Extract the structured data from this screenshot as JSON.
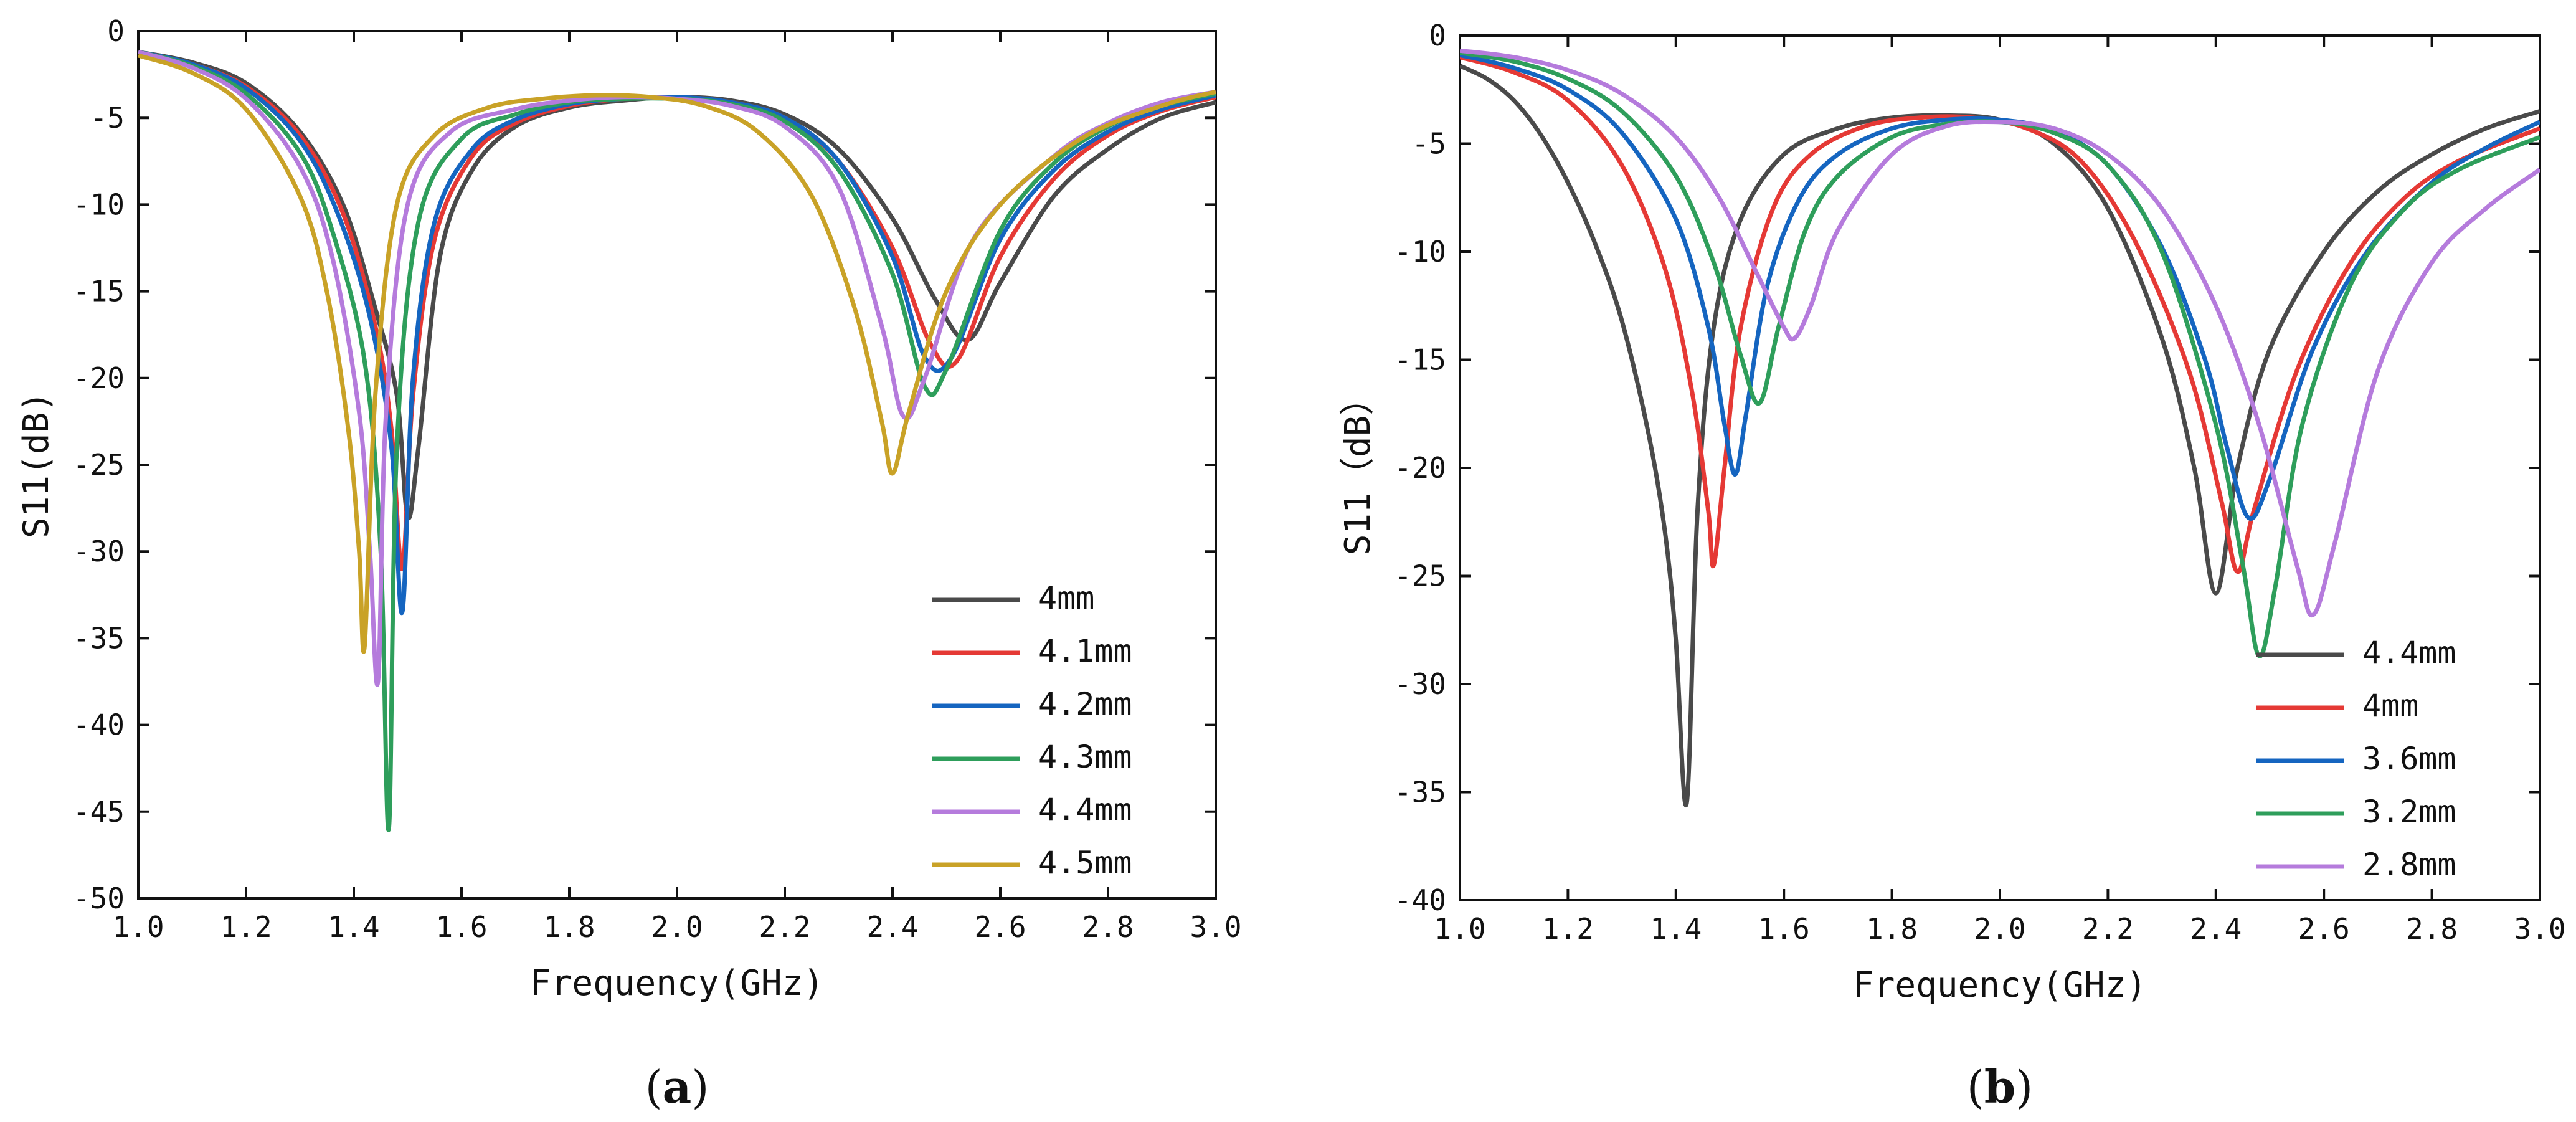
{
  "chart_data": [
    {
      "type": "line",
      "caption": {
        "open": "(",
        "letter": "a",
        "close": ")"
      },
      "xlabel": "Frequency(GHz)",
      "ylabel": "S11(dB)",
      "xlim": [
        1.0,
        3.0
      ],
      "ylim": [
        -50,
        0
      ],
      "xticks": [
        1.0,
        1.2,
        1.4,
        1.6,
        1.8,
        2.0,
        2.2,
        2.4,
        2.6,
        2.8,
        3.0
      ],
      "xtick_labels": [
        "1.0",
        "1.2",
        "1.4",
        "1.6",
        "1.8",
        "2.0",
        "2.2",
        "2.4",
        "2.6",
        "2.8",
        "3.0"
      ],
      "yticks": [
        0,
        -5,
        -10,
        -15,
        -20,
        -25,
        -30,
        -35,
        -40,
        -45,
        -50
      ],
      "ytick_labels": [
        "0",
        "-5",
        "-10",
        "-15",
        "-20",
        "-25",
        "-30",
        "-35",
        "-40",
        "-45",
        "-50"
      ],
      "legend_position": "bottom-right",
      "series": [
        {
          "name": "4mm",
          "color": "#4a4a4a",
          "x": [
            1.0,
            1.1,
            1.2,
            1.3,
            1.38,
            1.44,
            1.48,
            1.5,
            1.52,
            1.56,
            1.62,
            1.7,
            1.8,
            1.9,
            2.0,
            2.1,
            2.2,
            2.3,
            2.4,
            2.48,
            2.54,
            2.6,
            2.7,
            2.8,
            2.9,
            3.0
          ],
          "y": [
            -1.2,
            -1.8,
            -3.0,
            -5.8,
            -10.0,
            -16.0,
            -21.0,
            -28.0,
            -24.0,
            -13.0,
            -8.0,
            -5.5,
            -4.4,
            -4.0,
            -3.8,
            -4.0,
            -4.8,
            -6.8,
            -10.8,
            -15.5,
            -17.8,
            -14.5,
            -9.5,
            -6.8,
            -5.0,
            -4.1
          ]
        },
        {
          "name": "4.1mm",
          "color": "#e53935",
          "x": [
            1.0,
            1.1,
            1.2,
            1.3,
            1.38,
            1.44,
            1.47,
            1.49,
            1.51,
            1.55,
            1.62,
            1.7,
            1.8,
            1.9,
            2.0,
            2.1,
            2.2,
            2.3,
            2.4,
            2.47,
            2.52,
            2.6,
            2.7,
            2.8,
            2.9,
            3.0
          ],
          "y": [
            -1.2,
            -1.9,
            -3.2,
            -6.0,
            -10.5,
            -17.0,
            -23.0,
            -31.0,
            -21.0,
            -12.0,
            -7.2,
            -5.3,
            -4.3,
            -3.9,
            -3.8,
            -4.1,
            -5.0,
            -7.5,
            -12.5,
            -18.0,
            -19.0,
            -13.0,
            -8.5,
            -6.0,
            -4.6,
            -3.8
          ]
        },
        {
          "name": "4.2mm",
          "color": "#1565c0",
          "x": [
            1.0,
            1.1,
            1.2,
            1.3,
            1.37,
            1.43,
            1.47,
            1.49,
            1.51,
            1.55,
            1.62,
            1.7,
            1.8,
            1.9,
            2.0,
            2.1,
            2.2,
            2.3,
            2.4,
            2.46,
            2.51,
            2.6,
            2.7,
            2.8,
            2.9,
            3.0
          ],
          "y": [
            -1.2,
            -1.9,
            -3.3,
            -6.3,
            -10.5,
            -16.5,
            -24.0,
            -33.5,
            -20.0,
            -11.0,
            -6.8,
            -5.1,
            -4.2,
            -3.9,
            -3.8,
            -4.1,
            -5.0,
            -7.5,
            -13.0,
            -18.8,
            -18.8,
            -12.0,
            -8.0,
            -5.8,
            -4.5,
            -3.7
          ]
        },
        {
          "name": "4.3mm",
          "color": "#2e9e5b",
          "x": [
            1.0,
            1.1,
            1.2,
            1.3,
            1.36,
            1.42,
            1.45,
            1.465,
            1.48,
            1.52,
            1.6,
            1.7,
            1.8,
            1.9,
            2.0,
            2.1,
            2.2,
            2.3,
            2.4,
            2.46,
            2.5,
            2.6,
            2.7,
            2.8,
            2.9,
            3.0
          ],
          "y": [
            -1.2,
            -2.0,
            -3.6,
            -7.0,
            -11.5,
            -19.0,
            -30.0,
            -46.0,
            -24.0,
            -11.0,
            -6.2,
            -4.8,
            -4.1,
            -3.9,
            -3.9,
            -4.2,
            -5.2,
            -8.0,
            -14.0,
            -20.5,
            -19.5,
            -11.5,
            -7.6,
            -5.5,
            -4.3,
            -3.6
          ]
        },
        {
          "name": "4.4mm",
          "color": "#b57bdc",
          "x": [
            1.0,
            1.1,
            1.2,
            1.3,
            1.36,
            1.41,
            1.43,
            1.445,
            1.46,
            1.5,
            1.58,
            1.7,
            1.8,
            1.9,
            2.0,
            2.1,
            2.2,
            2.3,
            2.38,
            2.42,
            2.46,
            2.55,
            2.7,
            2.8,
            2.9,
            3.0
          ],
          "y": [
            -1.2,
            -2.1,
            -3.9,
            -7.8,
            -13.0,
            -22.0,
            -30.0,
            -37.5,
            -22.0,
            -10.0,
            -5.8,
            -4.5,
            -4.0,
            -3.8,
            -3.9,
            -4.3,
            -5.5,
            -9.0,
            -17.0,
            -22.2,
            -20.0,
            -12.0,
            -7.2,
            -5.3,
            -4.1,
            -3.5
          ]
        },
        {
          "name": "4.5mm",
          "color": "#c9a227",
          "x": [
            1.0,
            1.1,
            1.2,
            1.3,
            1.35,
            1.39,
            1.41,
            1.42,
            1.44,
            1.48,
            1.55,
            1.65,
            1.75,
            1.85,
            1.95,
            2.05,
            2.15,
            2.25,
            2.33,
            2.38,
            2.4,
            2.43,
            2.5,
            2.6,
            2.75,
            2.9,
            3.0
          ],
          "y": [
            -1.4,
            -2.4,
            -4.5,
            -9.5,
            -15.0,
            -23.0,
            -30.0,
            -35.5,
            -21.0,
            -10.0,
            -6.0,
            -4.4,
            -3.9,
            -3.7,
            -3.8,
            -4.3,
            -5.8,
            -9.5,
            -16.0,
            -22.5,
            -25.5,
            -22.0,
            -15.0,
            -10.0,
            -6.2,
            -4.3,
            -3.5
          ]
        }
      ]
    },
    {
      "type": "line",
      "caption": {
        "open": "(",
        "letter": "b",
        "close": ")"
      },
      "xlabel": "Frequency(GHz)",
      "ylabel": "S11（dB）",
      "xlim": [
        1.0,
        3.0
      ],
      "ylim": [
        -40,
        0
      ],
      "xticks": [
        1.0,
        1.2,
        1.4,
        1.6,
        1.8,
        2.0,
        2.2,
        2.4,
        2.6,
        2.8,
        3.0
      ],
      "xtick_labels": [
        "1.0",
        "1.2",
        "1.4",
        "1.6",
        "1.8",
        "2.0",
        "2.2",
        "2.4",
        "2.6",
        "2.8",
        "3.0"
      ],
      "yticks": [
        0,
        -5,
        -10,
        -15,
        -20,
        -25,
        -30,
        -35,
        -40
      ],
      "ytick_labels": [
        "0",
        "-5",
        "-10",
        "-15",
        "-20",
        "-25",
        "-30",
        "-35",
        "-40"
      ],
      "legend_position": "bottom-right",
      "series": [
        {
          "name": "4.4mm",
          "color": "#4a4a4a",
          "x": [
            1.0,
            1.05,
            1.1,
            1.15,
            1.2,
            1.25,
            1.3,
            1.35,
            1.38,
            1.4,
            1.42,
            1.44,
            1.47,
            1.52,
            1.6,
            1.7,
            1.8,
            1.9,
            2.0,
            2.1,
            2.2,
            2.3,
            2.36,
            2.4,
            2.44,
            2.5,
            2.6,
            2.7,
            2.8,
            2.9,
            3.0
          ],
          "y": [
            -1.4,
            -2.0,
            -3.0,
            -4.6,
            -6.8,
            -9.6,
            -13.2,
            -18.5,
            -23.0,
            -28.0,
            -35.5,
            -22.0,
            -13.5,
            -8.5,
            -5.5,
            -4.3,
            -3.8,
            -3.7,
            -3.9,
            -5.0,
            -8.0,
            -14.0,
            -20.0,
            -25.8,
            -20.0,
            -14.5,
            -10.0,
            -7.2,
            -5.5,
            -4.3,
            -3.5
          ]
        },
        {
          "name": "4mm",
          "color": "#e53935",
          "x": [
            1.0,
            1.1,
            1.2,
            1.3,
            1.38,
            1.43,
            1.46,
            1.47,
            1.49,
            1.52,
            1.58,
            1.65,
            1.75,
            1.85,
            1.95,
            2.05,
            2.15,
            2.25,
            2.35,
            2.41,
            2.44,
            2.47,
            2.55,
            2.65,
            2.75,
            2.85,
            3.0
          ],
          "y": [
            -1.0,
            -1.7,
            -3.0,
            -6.0,
            -10.8,
            -16.5,
            -22.0,
            -24.5,
            -20.0,
            -13.5,
            -8.0,
            -5.5,
            -4.2,
            -3.8,
            -3.8,
            -4.3,
            -5.8,
            -9.5,
            -15.5,
            -21.5,
            -24.8,
            -22.0,
            -15.5,
            -10.5,
            -7.5,
            -5.8,
            -4.3
          ]
        },
        {
          "name": "3.6mm",
          "color": "#1565c0",
          "x": [
            1.0,
            1.1,
            1.2,
            1.3,
            1.4,
            1.46,
            1.49,
            1.51,
            1.53,
            1.57,
            1.63,
            1.7,
            1.8,
            1.9,
            2.0,
            2.1,
            2.2,
            2.3,
            2.38,
            2.42,
            2.46,
            2.5,
            2.58,
            2.68,
            2.8,
            2.9,
            3.0
          ],
          "y": [
            -0.9,
            -1.5,
            -2.5,
            -4.5,
            -8.5,
            -13.5,
            -18.0,
            -20.3,
            -17.5,
            -11.5,
            -7.5,
            -5.5,
            -4.3,
            -3.9,
            -3.9,
            -4.4,
            -6.0,
            -9.8,
            -15.0,
            -19.0,
            -22.3,
            -20.5,
            -14.5,
            -10.0,
            -6.8,
            -5.2,
            -4.0
          ]
        },
        {
          "name": "3.2mm",
          "color": "#2e9e5b",
          "x": [
            1.0,
            1.1,
            1.2,
            1.3,
            1.4,
            1.47,
            1.52,
            1.555,
            1.59,
            1.64,
            1.7,
            1.8,
            1.9,
            2.0,
            2.1,
            2.2,
            2.3,
            2.4,
            2.45,
            2.48,
            2.51,
            2.56,
            2.65,
            2.75,
            2.85,
            3.0
          ],
          "y": [
            -0.8,
            -1.2,
            -2.0,
            -3.5,
            -6.5,
            -10.5,
            -14.8,
            -17.0,
            -13.5,
            -9.0,
            -6.5,
            -4.7,
            -4.1,
            -4.0,
            -4.5,
            -6.0,
            -10.0,
            -18.0,
            -24.5,
            -28.7,
            -25.5,
            -18.0,
            -11.5,
            -8.0,
            -6.2,
            -4.7
          ]
        },
        {
          "name": "2.8mm",
          "color": "#b57bdc",
          "x": [
            1.0,
            1.1,
            1.2,
            1.3,
            1.4,
            1.48,
            1.55,
            1.6,
            1.62,
            1.65,
            1.7,
            1.8,
            1.9,
            2.0,
            2.1,
            2.2,
            2.3,
            2.4,
            2.48,
            2.55,
            2.58,
            2.62,
            2.7,
            2.8,
            2.9,
            3.0
          ],
          "y": [
            -0.7,
            -1.0,
            -1.6,
            -2.7,
            -4.7,
            -7.5,
            -11.0,
            -13.5,
            -14.0,
            -12.5,
            -9.0,
            -5.5,
            -4.2,
            -4.0,
            -4.3,
            -5.5,
            -8.0,
            -12.5,
            -18.0,
            -24.5,
            -26.8,
            -23.5,
            -15.5,
            -10.5,
            -8.0,
            -6.2
          ]
        }
      ]
    }
  ]
}
